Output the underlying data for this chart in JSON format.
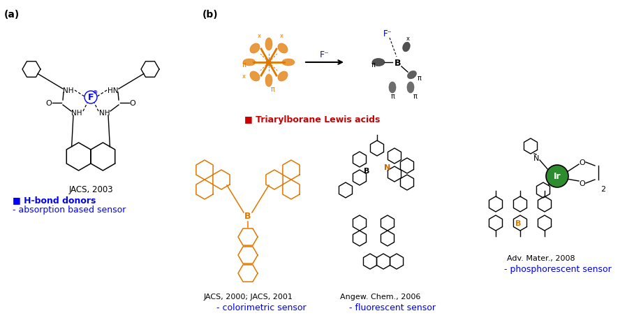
{
  "bg_color": "#ffffff",
  "label_a": "(a)",
  "label_b": "(b)",
  "orange": "#e07800",
  "blue": "#0000ff",
  "dark_red": "#cc0000",
  "black": "#000000",
  "dark_blue": "#000099",
  "ir_green": "#2d8c2d",
  "gray_orbital": "#444444",
  "jacs2003": "JACS, 2003",
  "hbond1": "■ H-bond donors",
  "hbond2": "- absorption based sensor",
  "triaryl": "■ Triarylborane Lewis acids",
  "jacs2000": "JACS, 2000; JACS, 2001",
  "colorimetric": "- colorimetric sensor",
  "angew": "Angew. Chem., 2006",
  "fluorescent": "- fluorescent sensor",
  "advmater": "Adv. Mater., 2008",
  "phosphorescent": "- phosphorescent sensor"
}
